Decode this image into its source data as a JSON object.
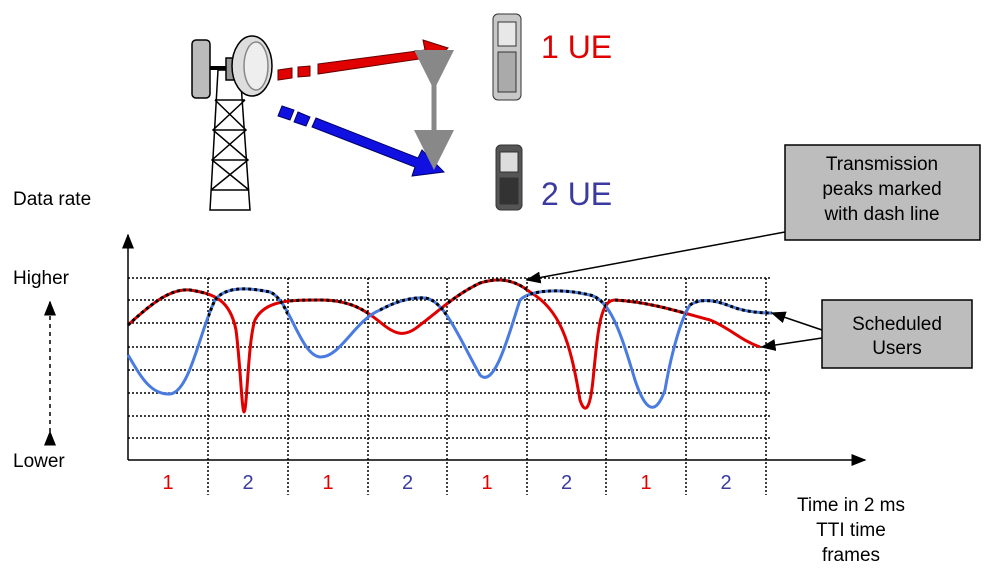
{
  "ue_labels": {
    "ue1": "1 UE",
    "ue2": "2 UE"
  },
  "axis": {
    "y_title": "Data rate",
    "higher": "Higher",
    "lower": "Lower",
    "x_title_lines": [
      "Time in 2 ms",
      "TTI time",
      "frames"
    ]
  },
  "slots": [
    "1",
    "2",
    "1",
    "2",
    "1",
    "2",
    "1",
    "2"
  ],
  "callouts": {
    "peaks": [
      "Transmission",
      "peaks marked",
      "with dash line"
    ],
    "scheduled": [
      "Scheduled",
      "Users"
    ]
  }
}
